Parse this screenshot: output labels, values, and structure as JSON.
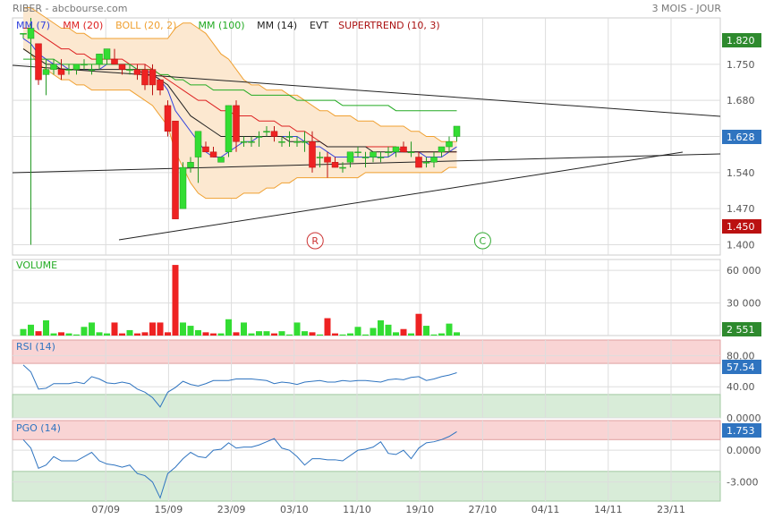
{
  "header": {
    "symbol": "RIBER - abcbourse.com",
    "period": "3 MOIS - JOUR"
  },
  "legend": [
    {
      "label": "MM (7)",
      "color": "#3344dd"
    },
    {
      "label": "MM (20)",
      "color": "#dd2222"
    },
    {
      "label": "BOLL (20, 2)",
      "color": "#f0a030"
    },
    {
      "label": "MM (100)",
      "color": "#22aa22"
    },
    {
      "label": "MM (14)",
      "color": "#222222"
    },
    {
      "label": "EVT",
      "color": "#222222"
    },
    {
      "label": "SUPERTREND (10, 3)",
      "color": "#aa1111"
    }
  ],
  "colors": {
    "up": "#33dd33",
    "down": "#ee2222",
    "boll_fill": "#fce8d0",
    "grid": "#dddddd",
    "rsi_over": "#f9d4d4",
    "rsi_under": "#d8ecd8",
    "line_blue": "#2f74c0",
    "badge_green": "#2e8a2e",
    "badge_red": "#bb1111",
    "badge_blue": "#2f74c0"
  },
  "badges": {
    "top_price": "1.820",
    "last_price": "1.628",
    "low_price": "1.450",
    "volume": "2 551",
    "rsi": "57.54",
    "pgo": "1.753"
  },
  "markers": [
    {
      "label": "R",
      "day": 13
    },
    {
      "label": "C",
      "day": 21
    }
  ],
  "chart_data": {
    "type": "candlestick",
    "x_labels": [
      {
        "label": "07/09",
        "day": 3
      },
      {
        "label": "15/09",
        "day": 6
      },
      {
        "label": "23/09",
        "day": 9
      },
      {
        "label": "03/10",
        "day": 12
      },
      {
        "label": "11/10",
        "day": 15
      },
      {
        "label": "19/10",
        "day": 18
      },
      {
        "label": "27/10",
        "day": 21
      },
      {
        "label": "04/11",
        "day": 24
      },
      {
        "label": "14/11",
        "day": 27
      },
      {
        "label": "23/11",
        "day": 30
      }
    ],
    "price_ticks": [
      "1.400",
      "1.470",
      "1.540",
      "1.610",
      "1.680",
      "1.750"
    ],
    "price_ylim": [
      1.38,
      1.84
    ],
    "candles": [
      [
        1.81,
        1.81,
        1.8,
        1.81
      ],
      [
        1.8,
        1.84,
        1.4,
        1.82
      ],
      [
        1.79,
        1.79,
        1.71,
        1.72
      ],
      [
        1.73,
        1.76,
        1.69,
        1.74
      ],
      [
        1.74,
        1.76,
        1.73,
        1.75
      ],
      [
        1.74,
        1.76,
        1.72,
        1.73
      ],
      [
        1.74,
        1.75,
        1.73,
        1.74
      ],
      [
        1.74,
        1.75,
        1.73,
        1.75
      ],
      [
        1.75,
        1.76,
        1.74,
        1.75
      ],
      [
        1.74,
        1.75,
        1.73,
        1.74
      ],
      [
        1.75,
        1.77,
        1.74,
        1.77
      ],
      [
        1.76,
        1.78,
        1.75,
        1.78
      ],
      [
        1.76,
        1.78,
        1.75,
        1.75
      ],
      [
        1.75,
        1.75,
        1.73,
        1.74
      ],
      [
        1.74,
        1.75,
        1.73,
        1.74
      ],
      [
        1.74,
        1.75,
        1.72,
        1.73
      ],
      [
        1.74,
        1.75,
        1.7,
        1.71
      ],
      [
        1.74,
        1.75,
        1.69,
        1.71
      ],
      [
        1.72,
        1.72,
        1.69,
        1.7
      ],
      [
        1.67,
        1.68,
        1.61,
        1.62
      ],
      [
        1.64,
        1.64,
        1.45,
        1.45
      ],
      [
        1.47,
        1.56,
        1.47,
        1.55
      ],
      [
        1.55,
        1.57,
        1.54,
        1.56
      ],
      [
        1.57,
        1.62,
        1.52,
        1.62
      ],
      [
        1.59,
        1.6,
        1.58,
        1.58
      ],
      [
        1.58,
        1.59,
        1.57,
        1.57
      ],
      [
        1.56,
        1.57,
        1.56,
        1.57
      ],
      [
        1.58,
        1.67,
        1.57,
        1.67
      ],
      [
        1.67,
        1.68,
        1.58,
        1.6
      ],
      [
        1.6,
        1.61,
        1.59,
        1.6
      ],
      [
        1.6,
        1.61,
        1.59,
        1.6
      ],
      [
        1.61,
        1.62,
        1.59,
        1.61
      ],
      [
        1.62,
        1.63,
        1.61,
        1.62
      ],
      [
        1.62,
        1.63,
        1.6,
        1.61
      ],
      [
        1.6,
        1.61,
        1.59,
        1.6
      ],
      [
        1.61,
        1.62,
        1.59,
        1.61
      ],
      [
        1.6,
        1.61,
        1.59,
        1.6
      ],
      [
        1.6,
        1.62,
        1.58,
        1.6
      ],
      [
        1.6,
        1.62,
        1.54,
        1.55
      ],
      [
        1.57,
        1.58,
        1.55,
        1.57
      ],
      [
        1.57,
        1.58,
        1.53,
        1.56
      ],
      [
        1.56,
        1.57,
        1.55,
        1.55
      ],
      [
        1.55,
        1.56,
        1.54,
        1.55
      ],
      [
        1.56,
        1.58,
        1.55,
        1.58
      ],
      [
        1.58,
        1.59,
        1.57,
        1.58
      ],
      [
        1.57,
        1.58,
        1.55,
        1.57
      ],
      [
        1.57,
        1.58,
        1.56,
        1.58
      ],
      [
        1.57,
        1.58,
        1.56,
        1.57
      ],
      [
        1.58,
        1.59,
        1.57,
        1.58
      ],
      [
        1.58,
        1.59,
        1.57,
        1.59
      ],
      [
        1.59,
        1.6,
        1.58,
        1.58
      ],
      [
        1.58,
        1.6,
        1.57,
        1.58
      ],
      [
        1.57,
        1.58,
        1.55,
        1.55
      ],
      [
        1.56,
        1.57,
        1.55,
        1.56
      ],
      [
        1.56,
        1.58,
        1.55,
        1.57
      ],
      [
        1.58,
        1.59,
        1.57,
        1.59
      ],
      [
        1.59,
        1.61,
        1.58,
        1.6
      ],
      [
        1.61,
        1.63,
        1.6,
        1.63
      ]
    ],
    "series": [
      {
        "name": "MM (7)",
        "values": [
          1.8,
          1.79,
          1.77,
          1.76,
          1.75,
          1.75,
          1.74,
          1.74,
          1.74,
          1.74,
          1.74,
          1.75,
          1.75,
          1.75,
          1.75,
          1.74,
          1.74,
          1.73,
          1.72,
          1.7,
          1.66,
          1.64,
          1.62,
          1.6,
          1.58,
          1.57,
          1.57,
          1.58,
          1.59,
          1.6,
          1.6,
          1.61,
          1.61,
          1.61,
          1.61,
          1.61,
          1.61,
          1.6,
          1.59,
          1.59,
          1.58,
          1.57,
          1.57,
          1.57,
          1.57,
          1.57,
          1.57,
          1.57,
          1.57,
          1.58,
          1.58,
          1.58,
          1.58,
          1.57,
          1.57,
          1.57,
          1.58,
          1.59
        ]
      },
      {
        "name": "MM (20)",
        "values": [
          1.82,
          1.82,
          1.81,
          1.8,
          1.79,
          1.78,
          1.78,
          1.77,
          1.77,
          1.76,
          1.76,
          1.76,
          1.76,
          1.76,
          1.75,
          1.75,
          1.75,
          1.74,
          1.73,
          1.72,
          1.71,
          1.7,
          1.69,
          1.68,
          1.68,
          1.67,
          1.66,
          1.66,
          1.65,
          1.65,
          1.65,
          1.64,
          1.64,
          1.64,
          1.63,
          1.63,
          1.62,
          1.62,
          1.61,
          1.6,
          1.59,
          1.59,
          1.59,
          1.59,
          1.59,
          1.59,
          1.59,
          1.59,
          1.59,
          1.59,
          1.58,
          1.58,
          1.58,
          1.58,
          1.58,
          1.58,
          1.58,
          1.58
        ]
      },
      {
        "name": "MM (14)",
        "values": [
          1.78,
          1.77,
          1.76,
          1.75,
          1.75,
          1.74,
          1.74,
          1.74,
          1.74,
          1.74,
          1.74,
          1.74,
          1.74,
          1.74,
          1.74,
          1.74,
          1.73,
          1.73,
          1.72,
          1.71,
          1.69,
          1.67,
          1.65,
          1.64,
          1.63,
          1.62,
          1.61,
          1.61,
          1.61,
          1.61,
          1.61,
          1.61,
          1.61,
          1.61,
          1.61,
          1.6,
          1.6,
          1.6,
          1.6,
          1.6,
          1.59,
          1.59,
          1.59,
          1.59,
          1.59,
          1.59,
          1.58,
          1.58,
          1.58,
          1.58,
          1.58,
          1.58,
          1.58,
          1.58,
          1.58,
          1.58,
          1.58,
          1.58
        ]
      },
      {
        "name": "MM (100)",
        "values": [
          1.76,
          1.76,
          1.76,
          1.76,
          1.76,
          1.75,
          1.75,
          1.75,
          1.75,
          1.75,
          1.75,
          1.75,
          1.75,
          1.75,
          1.75,
          1.74,
          1.74,
          1.74,
          1.73,
          1.73,
          1.72,
          1.72,
          1.71,
          1.71,
          1.71,
          1.7,
          1.7,
          1.7,
          1.7,
          1.7,
          1.69,
          1.69,
          1.69,
          1.69,
          1.69,
          1.69,
          1.68,
          1.68,
          1.68,
          1.68,
          1.68,
          1.68,
          1.67,
          1.67,
          1.67,
          1.67,
          1.67,
          1.67,
          1.67,
          1.66,
          1.66,
          1.66,
          1.66,
          1.66,
          1.66,
          1.66,
          1.66,
          1.66
        ]
      },
      {
        "name": "BOLL upper",
        "values": [
          1.86,
          1.86,
          1.85,
          1.84,
          1.83,
          1.82,
          1.82,
          1.81,
          1.81,
          1.8,
          1.8,
          1.8,
          1.8,
          1.8,
          1.8,
          1.8,
          1.8,
          1.8,
          1.8,
          1.8,
          1.82,
          1.83,
          1.83,
          1.82,
          1.81,
          1.79,
          1.77,
          1.76,
          1.74,
          1.72,
          1.71,
          1.71,
          1.7,
          1.7,
          1.7,
          1.69,
          1.69,
          1.68,
          1.67,
          1.66,
          1.66,
          1.65,
          1.65,
          1.65,
          1.64,
          1.64,
          1.64,
          1.63,
          1.63,
          1.63,
          1.63,
          1.62,
          1.62,
          1.61,
          1.61,
          1.6,
          1.6,
          1.6
        ]
      },
      {
        "name": "BOLL lower",
        "values": [
          1.78,
          1.77,
          1.75,
          1.74,
          1.73,
          1.72,
          1.72,
          1.71,
          1.71,
          1.7,
          1.7,
          1.7,
          1.7,
          1.7,
          1.7,
          1.69,
          1.68,
          1.67,
          1.65,
          1.63,
          1.58,
          1.55,
          1.52,
          1.5,
          1.49,
          1.49,
          1.49,
          1.49,
          1.49,
          1.5,
          1.5,
          1.5,
          1.51,
          1.51,
          1.52,
          1.52,
          1.53,
          1.53,
          1.53,
          1.53,
          1.53,
          1.53,
          1.53,
          1.53,
          1.53,
          1.54,
          1.54,
          1.54,
          1.54,
          1.54,
          1.54,
          1.54,
          1.54,
          1.54,
          1.54,
          1.54,
          1.55,
          1.55
        ]
      }
    ],
    "volume_ticks": [
      "30 000",
      "60 000"
    ],
    "volume_ylim": [
      0,
      70000
    ],
    "volume": [
      6000,
      10000,
      4000,
      14000,
      2000,
      3000,
      2000,
      1000,
      8000,
      12000,
      3000,
      2000,
      12000,
      2000,
      5000,
      2000,
      3000,
      12000,
      12000,
      3000,
      65000,
      12000,
      9000,
      5000,
      3000,
      2000,
      2000,
      15000,
      3000,
      12000,
      2000,
      4000,
      4000,
      2000,
      4000,
      1000,
      12000,
      4000,
      3000,
      1000,
      16000,
      2000,
      1000,
      2000,
      8000,
      1000,
      7000,
      14000,
      10000,
      3000,
      6000,
      2000,
      20000,
      9000,
      1000,
      2000,
      11000,
      3000
    ],
    "rsi_ticks": [
      "0.0000",
      "40.00",
      "80.00"
    ],
    "rsi_ylim": [
      0,
      100
    ],
    "rsi": [
      68,
      59,
      37,
      38,
      44,
      44,
      44,
      46,
      44,
      53,
      50,
      45,
      44,
      46,
      44,
      37,
      33,
      26,
      14,
      33,
      39,
      47,
      43,
      41,
      44,
      48,
      48,
      48,
      50,
      50,
      50,
      49,
      48,
      44,
      46,
      45,
      43,
      46,
      47,
      48,
      46,
      46,
      48,
      47,
      48,
      48,
      47,
      46,
      49,
      50,
      49,
      52,
      53,
      48,
      50,
      53,
      55,
      58
    ],
    "pgo_ticks": [
      "-3.000",
      "0.0000"
    ],
    "pgo_ylim": [
      -4.8,
      2.8
    ],
    "pgo": [
      1.0,
      0.2,
      -1.7,
      -1.4,
      -0.6,
      -1.0,
      -1.0,
      -1.0,
      -0.6,
      -0.2,
      -1.0,
      -1.3,
      -1.4,
      -1.6,
      -1.4,
      -2.2,
      -2.4,
      -3.0,
      -4.5,
      -2.2,
      -1.6,
      -0.8,
      -0.2,
      -0.6,
      -0.7,
      0.0,
      0.1,
      0.7,
      0.2,
      0.3,
      0.3,
      0.5,
      0.8,
      1.1,
      0.2,
      0.0,
      -0.6,
      -1.4,
      -0.8,
      -0.8,
      -0.9,
      -0.9,
      -1.0,
      -0.5,
      0.0,
      0.1,
      0.3,
      0.8,
      -0.3,
      -0.4,
      0.0,
      -0.8,
      0.2,
      0.7,
      0.8,
      1.0,
      1.3,
      1.75
    ]
  }
}
